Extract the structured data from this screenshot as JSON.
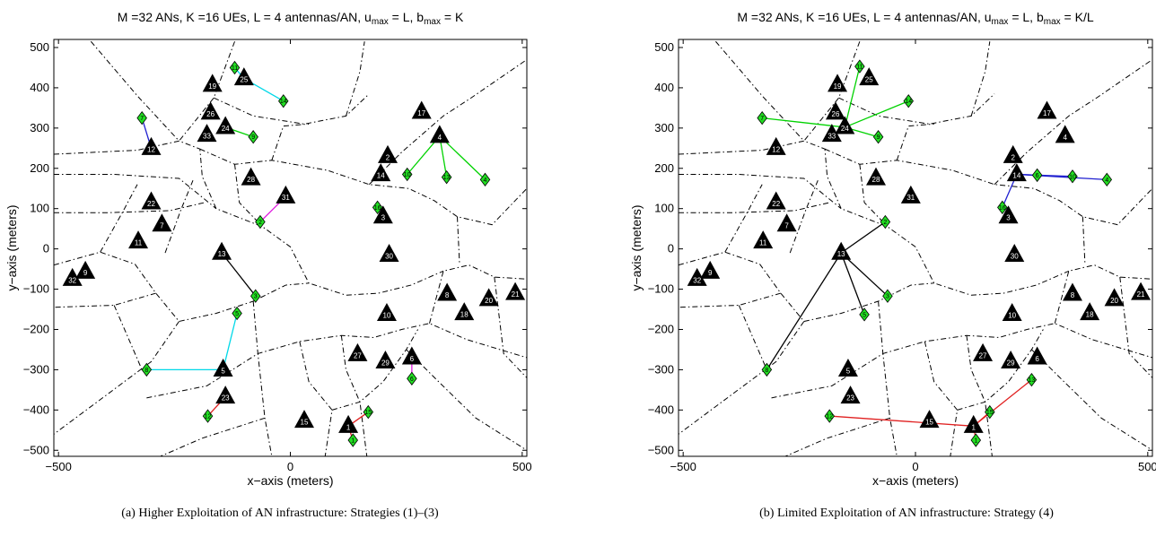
{
  "chart_data": [
    {
      "type": "scatter",
      "title_parts": [
        "M =32 ANs, K =16 UEs, L = 4 antennas/AN, u",
        "max",
        " = L, b",
        "max",
        " = K"
      ],
      "xlabel": "x−axis (meters)",
      "ylabel": "y−axis (meters)",
      "xlim": [
        -510,
        510
      ],
      "ylim": [
        -515,
        520
      ],
      "xticks": [
        -500,
        0,
        500
      ],
      "xtick_labels": [
        "−500",
        "0",
        "500"
      ],
      "yticks": [
        500,
        400,
        300,
        200,
        100,
        0,
        -100,
        -200,
        -300,
        -400,
        -500
      ],
      "ytick_labels": [
        "500",
        "400",
        "300",
        "200",
        "100",
        "0",
        "−100",
        "−200",
        "−300",
        "−400",
        "−500"
      ],
      "caption": "(a) Higher Exploitation of AN infrastructure: Strategies (1)–(3)",
      "ans": [
        {
          "id": "1",
          "x": 125,
          "y": -440
        },
        {
          "id": "2",
          "x": 210,
          "y": 230
        },
        {
          "id": "3",
          "x": 200,
          "y": 80
        },
        {
          "id": "4",
          "x": 322,
          "y": 280
        },
        {
          "id": "5",
          "x": -145,
          "y": -300
        },
        {
          "id": "6",
          "x": 262,
          "y": -270
        },
        {
          "id": "7",
          "x": -277,
          "y": 60
        },
        {
          "id": "8",
          "x": 338,
          "y": -112
        },
        {
          "id": "9",
          "x": -442,
          "y": -57
        },
        {
          "id": "10",
          "x": 208,
          "y": -162
        },
        {
          "id": "11",
          "x": -328,
          "y": 18
        },
        {
          "id": "12",
          "x": -300,
          "y": 250
        },
        {
          "id": "13",
          "x": -148,
          "y": -10
        },
        {
          "id": "14",
          "x": 195,
          "y": 185
        },
        {
          "id": "15",
          "x": 30,
          "y": -427
        },
        {
          "id": "17",
          "x": 283,
          "y": 340
        },
        {
          "id": "18",
          "x": 375,
          "y": -160
        },
        {
          "id": "19",
          "x": -168,
          "y": 407
        },
        {
          "id": "20",
          "x": 428,
          "y": -125
        },
        {
          "id": "21",
          "x": 485,
          "y": -110
        },
        {
          "id": "22",
          "x": -300,
          "y": 115
        },
        {
          "id": "23",
          "x": -140,
          "y": -367
        },
        {
          "id": "24",
          "x": -140,
          "y": 302
        },
        {
          "id": "25",
          "x": -100,
          "y": 423
        },
        {
          "id": "26",
          "x": -172,
          "y": 338
        },
        {
          "id": "27",
          "x": 145,
          "y": -262
        },
        {
          "id": "28",
          "x": -85,
          "y": 175
        },
        {
          "id": "29",
          "x": 205,
          "y": -280
        },
        {
          "id": "30",
          "x": 213,
          "y": -15
        },
        {
          "id": "31",
          "x": -10,
          "y": 130
        },
        {
          "id": "32",
          "x": -470,
          "y": -75
        },
        {
          "id": "33",
          "x": -180,
          "y": 283
        }
      ],
      "ues": [
        {
          "id": "1",
          "x": 135,
          "y": -475
        },
        {
          "id": "2",
          "x": -65,
          "y": 67
        },
        {
          "id": "3",
          "x": -75,
          "y": -117
        },
        {
          "id": "4",
          "x": 420,
          "y": 172
        },
        {
          "id": "5",
          "x": -115,
          "y": -160
        },
        {
          "id": "6",
          "x": 262,
          "y": -322
        },
        {
          "id": "7",
          "x": -320,
          "y": 325
        },
        {
          "id": "8",
          "x": -310,
          "y": -300
        },
        {
          "id": "9",
          "x": -80,
          "y": 278
        },
        {
          "id": "10",
          "x": 252,
          "y": 185
        },
        {
          "id": "11",
          "x": -120,
          "y": 450
        },
        {
          "id": "12",
          "x": -178,
          "y": -415
        },
        {
          "id": "13",
          "x": 337,
          "y": 178
        },
        {
          "id": "14",
          "x": -15,
          "y": 367
        },
        {
          "id": "15",
          "x": 168,
          "y": -405
        },
        {
          "id": "16",
          "x": 188,
          "y": 103
        }
      ],
      "links": [
        {
          "an": "12",
          "ue": "7",
          "color": "#1f1fd0"
        },
        {
          "an": "25",
          "ue": "11",
          "color": "#00d8e8"
        },
        {
          "an": "25",
          "ue": "14",
          "color": "#00d8e8"
        },
        {
          "an": "24",
          "ue": "9",
          "color": "#00d200"
        },
        {
          "an": "4",
          "ue": "10",
          "color": "#00d200"
        },
        {
          "an": "4",
          "ue": "13",
          "color": "#00d200"
        },
        {
          "an": "4",
          "ue": "4",
          "color": "#00d200"
        },
        {
          "an": "31",
          "ue": "2",
          "color": "#e020e0"
        },
        {
          "an": "13",
          "ue": "3",
          "color": "#000000"
        },
        {
          "an": "5",
          "ue": "5",
          "color": "#00d8e8"
        },
        {
          "an": "5",
          "ue": "8",
          "color": "#00d8e8"
        },
        {
          "an": "6",
          "ue": "6",
          "color": "#e020e0"
        },
        {
          "an": "23",
          "ue": "12",
          "color": "#e02020"
        },
        {
          "an": "1",
          "ue": "15",
          "color": "#e02020"
        },
        {
          "an": "1",
          "ue": "1",
          "color": "#e02020"
        }
      ]
    },
    {
      "type": "scatter",
      "title_parts": [
        "M =32 ANs, K =16 UEs, L = 4 antennas/AN, u",
        "max",
        " = L, b",
        "max",
        " = K/L"
      ],
      "xlabel": "x−axis (meters)",
      "ylabel": "y−axis (meters)",
      "xlim": [
        -510,
        510
      ],
      "ylim": [
        -515,
        520
      ],
      "xticks": [
        -500,
        0,
        500
      ],
      "xtick_labels": [
        "−500",
        "0",
        "500"
      ],
      "yticks": [
        500,
        400,
        300,
        200,
        100,
        0,
        -100,
        -200,
        -300,
        -400,
        -500
      ],
      "ytick_labels": [
        "500",
        "400",
        "300",
        "200",
        "100",
        "0",
        "−100",
        "−200",
        "−300",
        "−400",
        "−500"
      ],
      "caption": "(b) Limited Exploitation of AN infrastructure: Strategy (4)",
      "ans": [
        {
          "id": "1",
          "x": 125,
          "y": -440
        },
        {
          "id": "2",
          "x": 210,
          "y": 230
        },
        {
          "id": "3",
          "x": 200,
          "y": 80
        },
        {
          "id": "4",
          "x": 322,
          "y": 280
        },
        {
          "id": "5",
          "x": -145,
          "y": -300
        },
        {
          "id": "6",
          "x": 262,
          "y": -270
        },
        {
          "id": "7",
          "x": -277,
          "y": 60
        },
        {
          "id": "8",
          "x": 338,
          "y": -112
        },
        {
          "id": "9",
          "x": -442,
          "y": -57
        },
        {
          "id": "10",
          "x": 208,
          "y": -162
        },
        {
          "id": "11",
          "x": -328,
          "y": 18
        },
        {
          "id": "12",
          "x": -300,
          "y": 250
        },
        {
          "id": "13",
          "x": -160,
          "y": -10
        },
        {
          "id": "14",
          "x": 218,
          "y": 185
        },
        {
          "id": "15",
          "x": 30,
          "y": -427
        },
        {
          "id": "17",
          "x": 283,
          "y": 340
        },
        {
          "id": "18",
          "x": 375,
          "y": -160
        },
        {
          "id": "19",
          "x": -168,
          "y": 407
        },
        {
          "id": "20",
          "x": 428,
          "y": -125
        },
        {
          "id": "21",
          "x": 485,
          "y": -110
        },
        {
          "id": "22",
          "x": -300,
          "y": 115
        },
        {
          "id": "23",
          "x": -140,
          "y": -367
        },
        {
          "id": "24",
          "x": -152,
          "y": 302
        },
        {
          "id": "25",
          "x": -100,
          "y": 423
        },
        {
          "id": "26",
          "x": -172,
          "y": 338
        },
        {
          "id": "27",
          "x": 145,
          "y": -262
        },
        {
          "id": "28",
          "x": -85,
          "y": 175
        },
        {
          "id": "29",
          "x": 205,
          "y": -280
        },
        {
          "id": "30",
          "x": 213,
          "y": -15
        },
        {
          "id": "31",
          "x": -10,
          "y": 130
        },
        {
          "id": "32",
          "x": -470,
          "y": -75
        },
        {
          "id": "33",
          "x": -180,
          "y": 283
        }
      ],
      "ues": [
        {
          "id": "1",
          "x": 130,
          "y": -475
        },
        {
          "id": "2",
          "x": -65,
          "y": 67
        },
        {
          "id": "3",
          "x": -60,
          "y": -117
        },
        {
          "id": "4",
          "x": 412,
          "y": 172
        },
        {
          "id": "5",
          "x": -110,
          "y": -163
        },
        {
          "id": "6",
          "x": 262,
          "y": 183
        },
        {
          "id": "7",
          "x": -330,
          "y": 325
        },
        {
          "id": "8",
          "x": -320,
          "y": -300
        },
        {
          "id": "9",
          "x": -80,
          "y": 278
        },
        {
          "id": "10",
          "x": 338,
          "y": 180
        },
        {
          "id": "11",
          "x": -120,
          "y": 453
        },
        {
          "id": "12",
          "x": -185,
          "y": -415
        },
        {
          "id": "13",
          "x": 250,
          "y": -325
        },
        {
          "id": "14",
          "x": -15,
          "y": 367
        },
        {
          "id": "15",
          "x": 160,
          "y": -405
        },
        {
          "id": "16",
          "x": 187,
          "y": 103
        }
      ],
      "links": [
        {
          "an": "24",
          "ue": "11",
          "color": "#00d200"
        },
        {
          "an": "24",
          "ue": "14",
          "color": "#00d200"
        },
        {
          "an": "24",
          "ue": "7",
          "color": "#00d200"
        },
        {
          "an": "24",
          "ue": "9",
          "color": "#00d200"
        },
        {
          "an": "14",
          "ue": "6",
          "color": "#1f1fd0"
        },
        {
          "an": "14",
          "ue": "10",
          "color": "#1f1fd0"
        },
        {
          "an": "14",
          "ue": "4",
          "color": "#1f1fd0"
        },
        {
          "an": "14",
          "ue": "16",
          "color": "#1f1fd0"
        },
        {
          "an": "13",
          "ue": "2",
          "color": "#000000"
        },
        {
          "an": "13",
          "ue": "3",
          "color": "#000000"
        },
        {
          "an": "13",
          "ue": "5",
          "color": "#000000"
        },
        {
          "an": "13",
          "ue": "8",
          "color": "#000000"
        },
        {
          "an": "1",
          "ue": "12",
          "color": "#e02020"
        },
        {
          "an": "1",
          "ue": "15",
          "color": "#e02020"
        },
        {
          "an": "1",
          "ue": "1",
          "color": "#e02020"
        },
        {
          "an": "1",
          "ue": "13",
          "color": "#e02020"
        }
      ]
    }
  ],
  "colors": {
    "an_marker": "#000000",
    "ue_marker": "#22dd22",
    "voronoi_line": "#000000"
  }
}
